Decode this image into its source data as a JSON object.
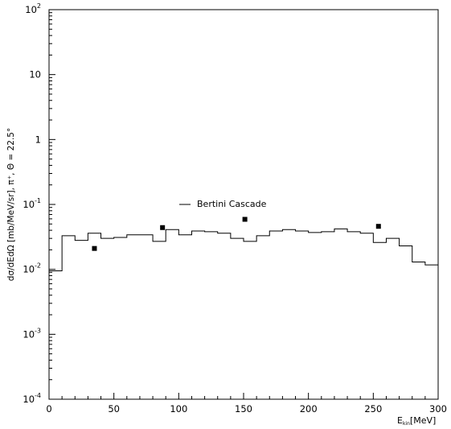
{
  "chart_data": {
    "type": "line",
    "title": "",
    "xlabel_main": "E",
    "xlabel_sub": "kin",
    "xlabel_unit": "[MeV]",
    "ylabel": "dσ/dEdΩ [mb/MeV/sr], π⁺, Θ = 22.5°",
    "xlim": [
      0,
      300
    ],
    "ylim": [
      0.0001,
      100
    ],
    "yscale": "log",
    "x_ticks": [
      {
        "value": 0,
        "label": "0"
      },
      {
        "value": 50,
        "label": "50"
      },
      {
        "value": 100,
        "label": "100"
      },
      {
        "value": 150,
        "label": "150"
      },
      {
        "value": 200,
        "label": "200"
      },
      {
        "value": 250,
        "label": "250"
      },
      {
        "value": 300,
        "label": "300"
      }
    ],
    "y_ticks": [
      {
        "value": 100,
        "base": "10",
        "exp": "2"
      },
      {
        "value": 10,
        "base": "10",
        "exp": ""
      },
      {
        "value": 1,
        "base": "1",
        "exp": ""
      },
      {
        "value": 0.1,
        "base": "10",
        "exp": "-1"
      },
      {
        "value": 0.01,
        "base": "10",
        "exp": "-2"
      },
      {
        "value": 0.001,
        "base": "10",
        "exp": "-3"
      },
      {
        "value": 0.0001,
        "base": "10",
        "exp": "-4"
      }
    ],
    "legend": {
      "label": "Bertini Cascade",
      "placement": "center"
    },
    "series": [
      {
        "name": "Bertini Cascade",
        "style": "histogram",
        "color": "#000000",
        "edges": [
          0,
          10,
          20,
          30,
          40,
          50,
          60,
          70,
          80,
          90,
          100,
          110,
          120,
          130,
          140,
          150,
          160,
          170,
          180,
          190,
          200,
          210,
          220,
          230,
          240,
          250,
          260,
          270,
          280,
          290,
          300
        ],
        "values": [
          0.0095,
          0.033,
          0.028,
          0.036,
          0.03,
          0.031,
          0.034,
          0.034,
          0.027,
          0.041,
          0.034,
          0.039,
          0.038,
          0.036,
          0.03,
          0.027,
          0.033,
          0.039,
          0.041,
          0.039,
          0.037,
          0.038,
          0.042,
          0.038,
          0.036,
          0.026,
          0.03,
          0.023,
          0.013,
          0.0117
        ]
      },
      {
        "style": "markers",
        "marker": "square",
        "color": "#000000",
        "x": [
          35,
          87.5,
          151,
          254
        ],
        "y": [
          0.021,
          0.044,
          0.059,
          0.046
        ]
      }
    ],
    "grid": false
  }
}
